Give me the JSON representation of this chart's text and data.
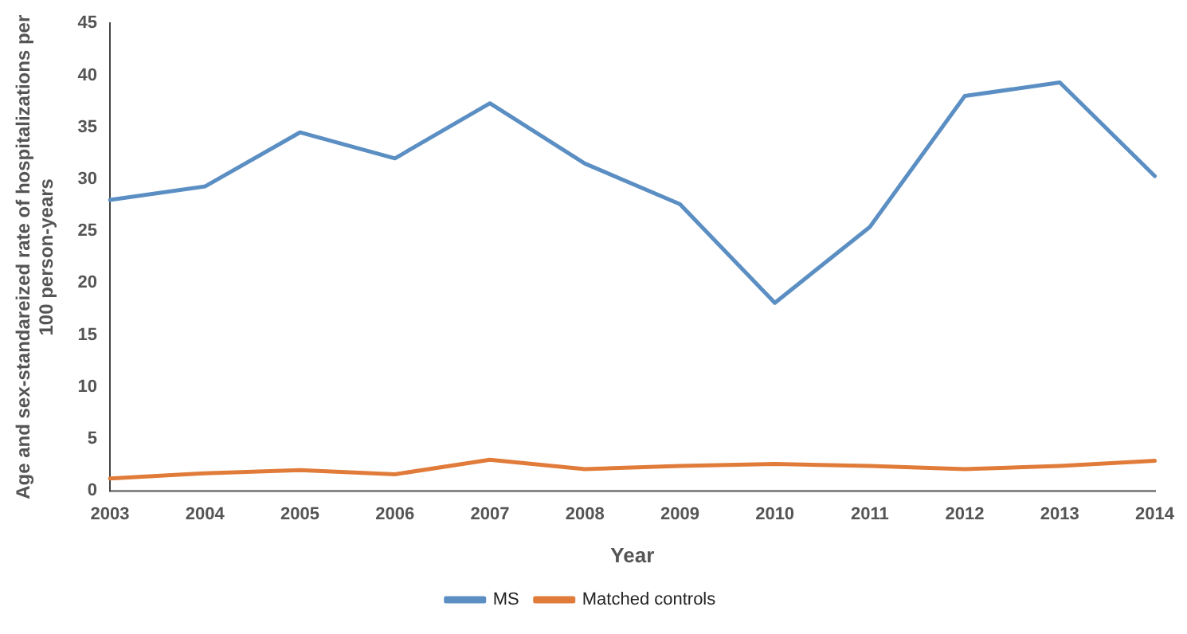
{
  "chart_data": {
    "type": "line",
    "xlabel": "Year",
    "ylabel": "Age and sex-standareized rate of hospitalizations per 100 person-years",
    "categories": [
      "2003",
      "2004",
      "2005",
      "2006",
      "2007",
      "2008",
      "2009",
      "2010",
      "2011",
      "2012",
      "2013",
      "2014"
    ],
    "series": [
      {
        "name": "MS",
        "color": "#5b8fc3",
        "values": [
          28.0,
          29.3,
          34.5,
          32.0,
          37.3,
          31.5,
          27.6,
          18.1,
          25.4,
          38.0,
          39.3,
          30.3
        ]
      },
      {
        "name": "Matched controls",
        "color": "#e07b39",
        "values": [
          1.2,
          1.7,
          2.0,
          1.6,
          3.0,
          2.1,
          2.4,
          2.6,
          2.4,
          2.1,
          2.4,
          2.9
        ]
      }
    ],
    "ylim": [
      0,
      45
    ],
    "yticks": [
      0,
      5,
      10,
      15,
      20,
      25,
      30,
      35,
      40,
      45
    ],
    "grid": false,
    "legend": "bottom",
    "marker": "none",
    "line_style": "solid"
  }
}
